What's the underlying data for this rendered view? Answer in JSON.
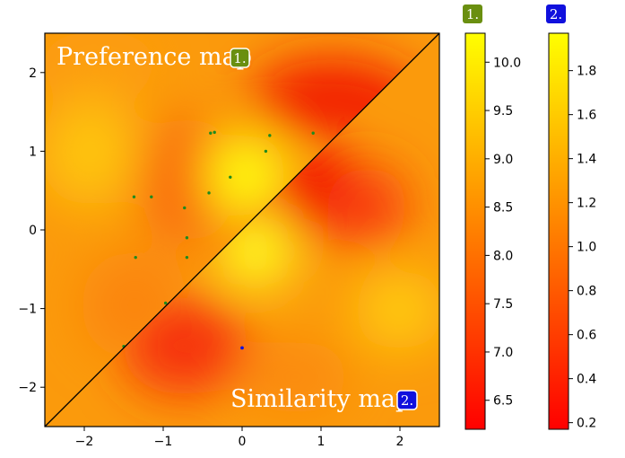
{
  "chart_data": {
    "type": "heatmap",
    "title": "",
    "xlabel": "",
    "ylabel": "",
    "xlim": [
      -2.5,
      2.5
    ],
    "ylim": [
      -2.5,
      2.5
    ],
    "xticks": [
      "−2",
      "−1",
      "0",
      "1",
      "2"
    ],
    "xtick_values": [
      -2,
      -1,
      0,
      1,
      2
    ],
    "yticks": [
      "−2",
      "−1",
      "0",
      "1",
      "2"
    ],
    "ytick_values": [
      -2,
      -1,
      0,
      1,
      2
    ],
    "diagonal": {
      "from": [
        -2.5,
        -2.5
      ],
      "to": [
        2.5,
        2.5
      ],
      "color": "#000000"
    },
    "upper_label": "Preference map",
    "upper_badge": "1.",
    "lower_label": "Similarity map",
    "lower_badge": "2.",
    "badge_colors": {
      "1.": "#6a8f10",
      "2.": "#1010dd"
    },
    "colormap": [
      "#ff0000",
      "#ff8000",
      "#ffff00"
    ],
    "colorbars": [
      {
        "badge": "1.",
        "range": [
          6.2,
          10.3
        ],
        "ticks": [
          "6.5",
          "7.0",
          "7.5",
          "8.0",
          "8.5",
          "9.0",
          "9.5",
          "10.0"
        ],
        "tick_values": [
          6.5,
          7.0,
          7.5,
          8.0,
          8.5,
          9.0,
          9.5,
          10.0
        ]
      },
      {
        "badge": "2.",
        "range": [
          0.17,
          1.97
        ],
        "ticks": [
          "0.2",
          "0.4",
          "0.6",
          "0.8",
          "1.0",
          "1.2",
          "1.4",
          "1.6",
          "1.8"
        ],
        "tick_values": [
          0.2,
          0.4,
          0.6,
          0.8,
          1.0,
          1.2,
          1.4,
          1.6,
          1.8
        ]
      }
    ],
    "points_green": [
      [
        -0.4,
        1.23
      ],
      [
        -0.35,
        1.24
      ],
      [
        0.35,
        1.2
      ],
      [
        0.9,
        1.23
      ],
      [
        0.3,
        1.0
      ],
      [
        -0.15,
        0.67
      ],
      [
        -0.42,
        0.47
      ],
      [
        -1.37,
        0.42
      ],
      [
        -1.15,
        0.42
      ],
      [
        -0.73,
        0.28
      ],
      [
        -0.7,
        -0.1
      ],
      [
        -1.35,
        -0.35
      ],
      [
        -0.7,
        -0.35
      ],
      [
        -0.97,
        -0.93
      ],
      [
        -1.5,
        -1.48
      ]
    ],
    "points_blue": [
      [
        0.0,
        -1.5
      ]
    ],
    "point_colors": {
      "green": "#1e8a1e",
      "blue": "#1010dd"
    }
  }
}
